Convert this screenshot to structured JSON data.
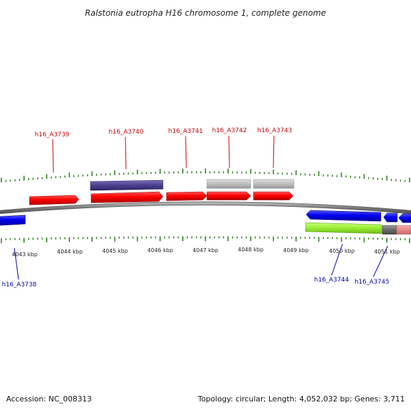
{
  "title": "Ralstonia eutropha H16 chromosome 1, complete genome",
  "footer": {
    "accession": "Accession: NC_008313",
    "topology": "Topology: circular; Length: 4,052,032 bp; Genes: 3,711"
  },
  "colors": {
    "forward_label": "#cc0000",
    "reverse_label": "#0000aa",
    "ticks": "#2e7d1e",
    "backbone": "#808080"
  },
  "axis": {
    "tick_labels": [
      "4043 kbp",
      "4044 kbp",
      "4045 kbp",
      "4046 kbp",
      "4047 kbp",
      "4048 kbp",
      "4049 kbp",
      "4050 kbp",
      "4051 kbp"
    ]
  },
  "genes": [
    {
      "label": "h16_A3739",
      "strand": "forward"
    },
    {
      "label": "h16_A3740",
      "strand": "forward"
    },
    {
      "label": "h16_A3741",
      "strand": "forward"
    },
    {
      "label": "h16_A3742",
      "strand": "forward"
    },
    {
      "label": "h16_A3743",
      "strand": "forward"
    },
    {
      "label": "h16_A3738",
      "strand": "reverse"
    },
    {
      "label": "h16_A3744",
      "strand": "reverse"
    },
    {
      "label": "h16_A3745",
      "strand": "reverse"
    }
  ]
}
